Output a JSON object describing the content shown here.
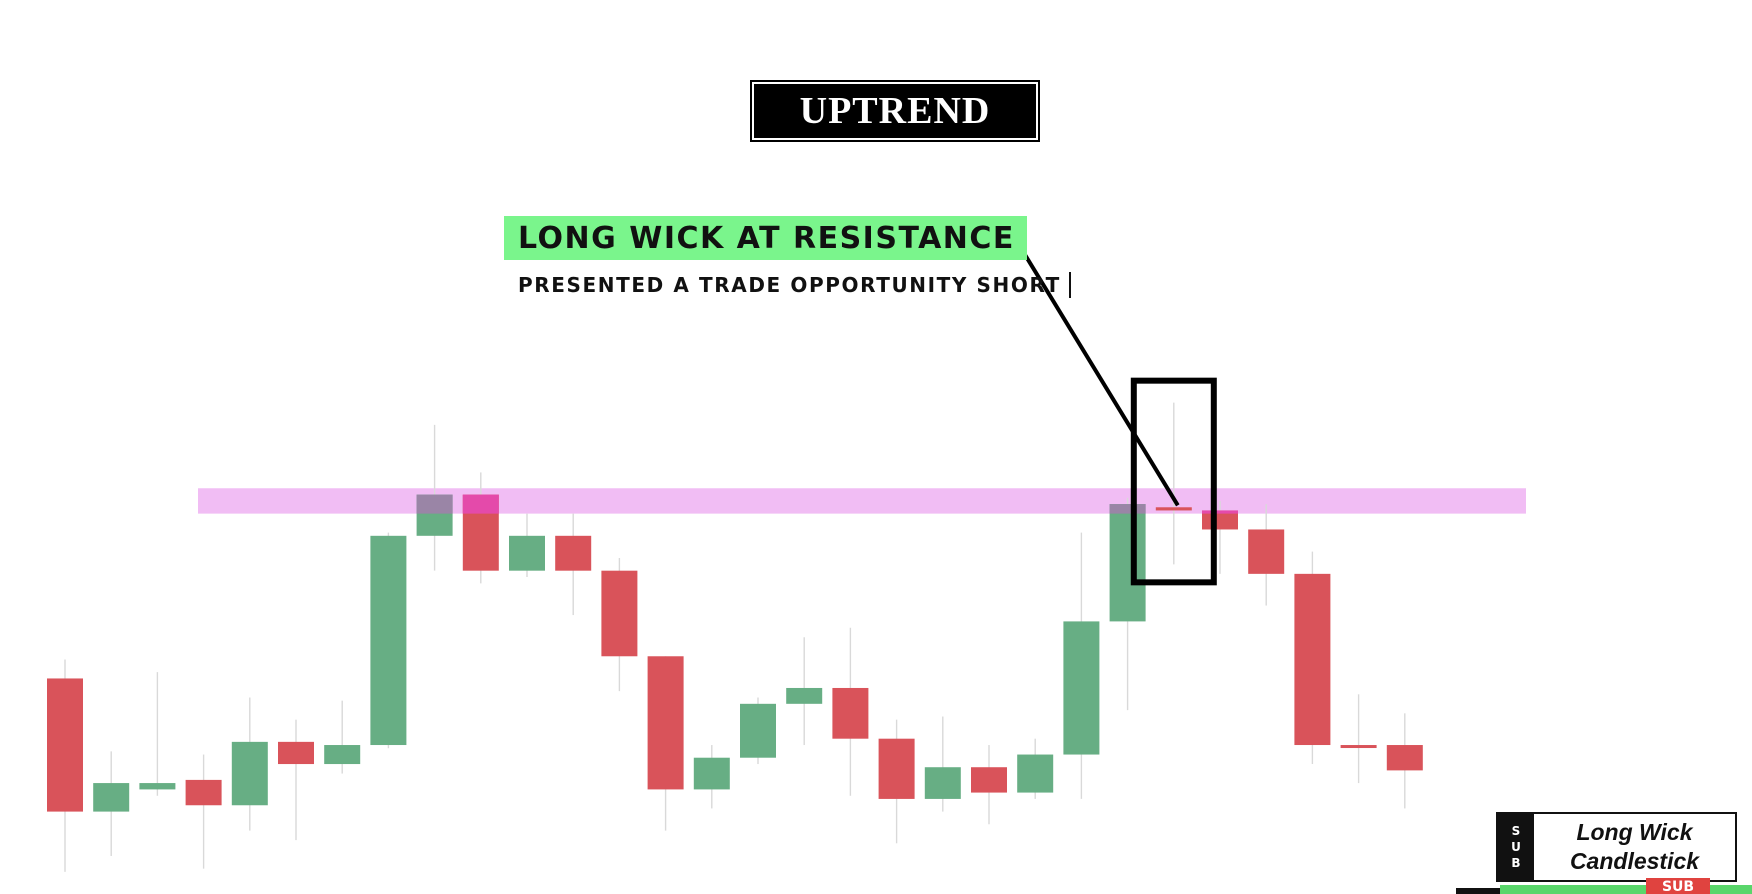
{
  "title": "UPTREND",
  "annotation": {
    "label": "LONG WICK AT RESISTANCE",
    "sub": "PRESENTED A TRADE OPPORTUNITY SHORT"
  },
  "badge": {
    "side": [
      "S",
      "U",
      "B"
    ],
    "line1": "Long Wick",
    "line2": "Candlestick"
  },
  "bottom_label": "SUB",
  "colors": {
    "bull": "#67ae84",
    "bear": "#d9535a",
    "resistance": "#f1bdf4",
    "annotation_bg": "#7af58c",
    "highlight_overlap_bull": "#9a85a6",
    "highlight_overlap_bear": "#e44aaa"
  },
  "chart_data": {
    "type": "candlestick",
    "title": "UPTREND",
    "ylim": [
      0,
      100
    ],
    "resistance_zone": [
      57.0,
      61.0
    ],
    "highlighted_candle_index": 24,
    "candles": [
      {
        "o": 31.0,
        "h": 34.0,
        "l": 0.5,
        "c": 10.0
      },
      {
        "o": 10.0,
        "h": 19.5,
        "l": 3.0,
        "c": 14.5
      },
      {
        "o": 13.5,
        "h": 32.0,
        "l": 12.5,
        "c": 14.5
      },
      {
        "o": 15.0,
        "h": 19.0,
        "l": 1.0,
        "c": 11.0
      },
      {
        "o": 11.0,
        "h": 28.0,
        "l": 7.0,
        "c": 21.0
      },
      {
        "o": 21.0,
        "h": 24.5,
        "l": 5.5,
        "c": 17.5
      },
      {
        "o": 17.5,
        "h": 27.5,
        "l": 16.0,
        "c": 20.5
      },
      {
        "o": 20.5,
        "h": 54.0,
        "l": 20.0,
        "c": 53.5
      },
      {
        "o": 53.5,
        "h": 71.0,
        "l": 48.0,
        "c": 60.0
      },
      {
        "o": 60.0,
        "h": 63.5,
        "l": 46.0,
        "c": 48.0
      },
      {
        "o": 48.0,
        "h": 57.0,
        "l": 47.0,
        "c": 53.5
      },
      {
        "o": 53.5,
        "h": 57.0,
        "l": 41.0,
        "c": 48.0
      },
      {
        "o": 48.0,
        "h": 50.0,
        "l": 29.0,
        "c": 34.5
      },
      {
        "o": 34.5,
        "h": 34.5,
        "l": 7.0,
        "c": 13.5
      },
      {
        "o": 13.5,
        "h": 20.5,
        "l": 10.5,
        "c": 18.5
      },
      {
        "o": 18.5,
        "h": 28.0,
        "l": 17.5,
        "c": 27.0
      },
      {
        "o": 27.0,
        "h": 37.5,
        "l": 20.5,
        "c": 29.5
      },
      {
        "o": 29.5,
        "h": 39.0,
        "l": 12.5,
        "c": 21.5
      },
      {
        "o": 21.5,
        "h": 24.5,
        "l": 5.0,
        "c": 12.0
      },
      {
        "o": 12.0,
        "h": 25.0,
        "l": 10.0,
        "c": 17.0
      },
      {
        "o": 17.0,
        "h": 20.5,
        "l": 8.0,
        "c": 13.0
      },
      {
        "o": 13.0,
        "h": 21.5,
        "l": 12.0,
        "c": 19.0
      },
      {
        "o": 19.0,
        "h": 54.0,
        "l": 12.0,
        "c": 40.0
      },
      {
        "o": 40.0,
        "h": 59.5,
        "l": 26.0,
        "c": 58.5
      },
      {
        "o": 58.0,
        "h": 74.5,
        "l": 49.0,
        "c": 57.5
      },
      {
        "o": 57.5,
        "h": 59.0,
        "l": 47.5,
        "c": 54.5
      },
      {
        "o": 54.5,
        "h": 58.5,
        "l": 42.5,
        "c": 47.5
      },
      {
        "o": 47.5,
        "h": 51.0,
        "l": 17.5,
        "c": 20.5
      },
      {
        "o": 20.5,
        "h": 28.5,
        "l": 14.5,
        "c": 20.4
      },
      {
        "o": 20.5,
        "h": 25.5,
        "l": 10.5,
        "c": 16.5
      }
    ]
  }
}
